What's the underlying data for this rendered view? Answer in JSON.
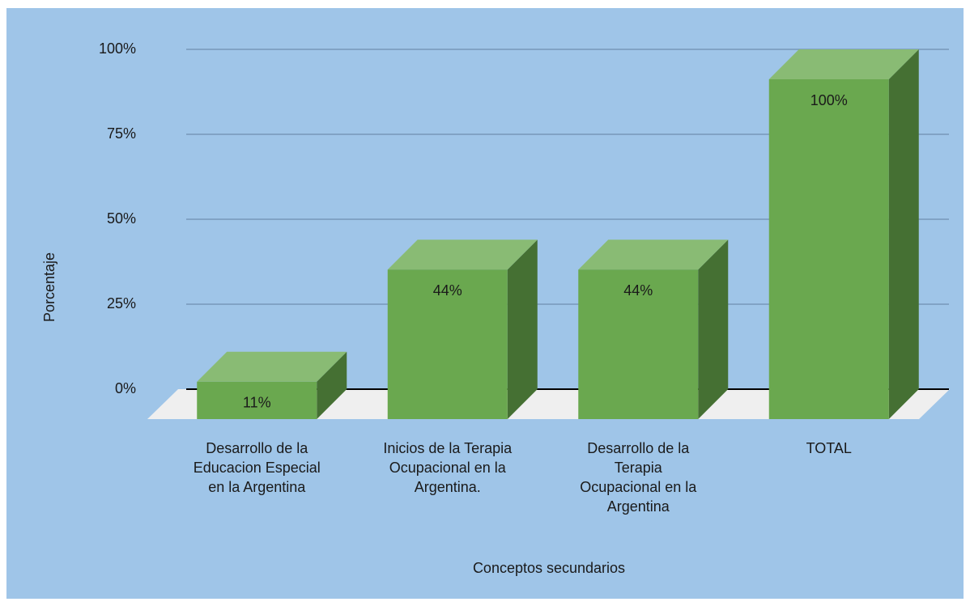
{
  "chart_data": {
    "type": "bar3d",
    "categories": [
      "Desarrollo de la\nEducacion Especial\nen la Argentina",
      "Inicios de la Terapia\nOcupacional en la\nArgentina.",
      "Desarrollo de la\nTerapia\nOcupacional en la\nArgentina",
      "TOTAL"
    ],
    "values": [
      11,
      44,
      44,
      100
    ],
    "value_labels": [
      "11%",
      "44%",
      "44%",
      "100%"
    ],
    "color": "#6aa84f",
    "ylim": [
      0,
      100
    ],
    "yticks": [
      {
        "value": 0,
        "label": "0%"
      },
      {
        "value": 25,
        "label": "25%"
      },
      {
        "value": 50,
        "label": "50%"
      },
      {
        "value": 75,
        "label": "75%"
      },
      {
        "value": 100,
        "label": "100%"
      }
    ],
    "grid": true,
    "ylabel": "Porcentaje",
    "xlabel": "Conceptos secundarios"
  }
}
